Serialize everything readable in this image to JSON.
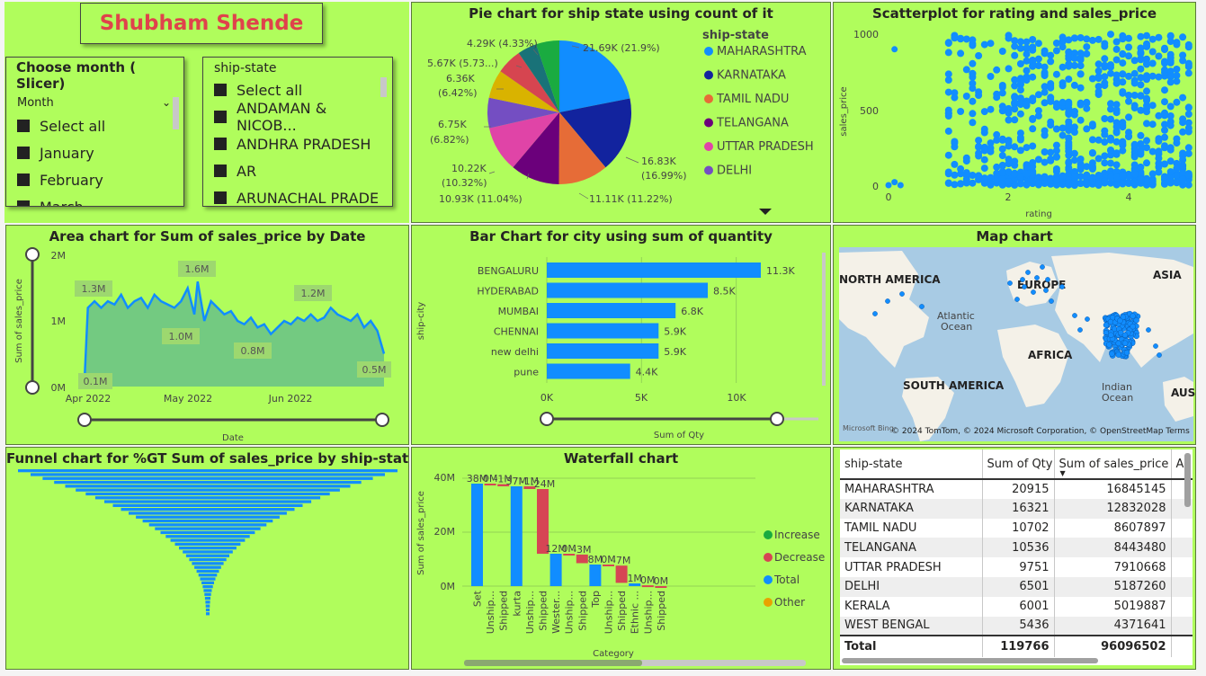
{
  "title": "Shubham Shende",
  "month_slicer": {
    "title": "Choose month ( Slicer)",
    "field": "Month",
    "items": [
      "Select all",
      "January",
      "February",
      "March"
    ]
  },
  "state_slicer": {
    "title": "ship-state",
    "items": [
      "Select all",
      "ANDAMAN & NICOB...",
      "ANDHRA PRADESH",
      "AR",
      "ARUNACHAL PRADE"
    ]
  },
  "pie": {
    "title": "Pie chart for ship state using count of it",
    "legend_title": "ship-state",
    "legend": [
      {
        "name": "MAHARASHTRA",
        "color": "#118dff"
      },
      {
        "name": "KARNATAKA",
        "color": "#12239e"
      },
      {
        "name": "TAMIL NADU",
        "color": "#e66c37"
      },
      {
        "name": "TELANGANA",
        "color": "#6b007b"
      },
      {
        "name": "UTTAR PRADESH",
        "color": "#e044a7"
      },
      {
        "name": "DELHI",
        "color": "#744ec2"
      }
    ],
    "labels": [
      "21.69K (21.9%)",
      "16.83K",
      "(16.99%)",
      "11.11K (11.22%)",
      "10.93K (11.04%)",
      "10.22K",
      "(10.32%)",
      "6.75K",
      "(6.82%)",
      "6.36K",
      "(6.42%)",
      "5.67K (5.73...)",
      "4.29K (4.33%)"
    ]
  },
  "scatter": {
    "title": "Scatterplot for rating and sales_price",
    "xlabel": "rating",
    "ylabel": "sales_price",
    "xticks": [
      "0",
      "2",
      "4"
    ],
    "yticks": [
      "1000",
      "500",
      "0"
    ]
  },
  "area": {
    "title": "Area chart for Sum of sales_price by Date",
    "xlabel": "Date",
    "ylabel": "Sum of sales_price",
    "xticks": [
      "Apr 2022",
      "May 2022",
      "Jun 2022"
    ],
    "yticks": [
      "2M",
      "1M",
      "0M"
    ],
    "labels": [
      "1.3M",
      "1.6M",
      "1.2M",
      "1.0M",
      "0.8M",
      "0.1M",
      "0.5M"
    ]
  },
  "bar": {
    "title": "Bar Chart for city using sum of quantity",
    "xlabel": "Sum of Qty",
    "ylabel": "ship-city",
    "xticks": [
      "0K",
      "5K",
      "10K"
    ]
  },
  "map": {
    "title": "Map chart",
    "labels": [
      "NORTH AMERICA",
      "EUROPE",
      "ASIA",
      "Atlantic",
      "Ocean",
      "AFRICA",
      "SOUTH AMERICA",
      "Indian",
      "Ocean",
      "AUS"
    ],
    "attribution": "© 2024 TomTom, © 2024 Microsoft Corporation, © OpenStreetMap Terms",
    "brand": "Microsoft Bing"
  },
  "funnel": {
    "title": "Funnel chart for %GT Sum of sales_price by ship-state"
  },
  "waterfall": {
    "title": "Waterfall chart",
    "xlabel": "Category",
    "ylabel": "Sum of sales_price",
    "yticks": [
      "40M",
      "20M",
      "0M"
    ],
    "legend": [
      {
        "name": "Increase",
        "color": "#1aab40"
      },
      {
        "name": "Decrease",
        "color": "#d64554"
      },
      {
        "name": "Total",
        "color": "#118dff"
      },
      {
        "name": "Other",
        "color": "#e8a200"
      }
    ]
  },
  "table": {
    "columns": [
      "ship-state",
      "Sum of Qty",
      "Sum of sales_price",
      "A"
    ],
    "rows": [
      [
        "MAHARASHTRA",
        "20915",
        "16845145"
      ],
      [
        "KARNATAKA",
        "16321",
        "12832028"
      ],
      [
        "TAMIL NADU",
        "10702",
        "8607897"
      ],
      [
        "TELANGANA",
        "10536",
        "8443480"
      ],
      [
        "UTTAR PRADESH",
        "9751",
        "7910668"
      ],
      [
        "DELHI",
        "6501",
        "5187260"
      ],
      [
        "KERALA",
        "6001",
        "5019887"
      ],
      [
        "WEST BENGAL",
        "5436",
        "4371641"
      ]
    ],
    "total": [
      "Total",
      "119766",
      "96096502"
    ]
  },
  "chart_data": [
    {
      "type": "pie",
      "title": "Pie chart for ship state using count of it",
      "categories": [
        "MAHARASHTRA",
        "KARNATAKA",
        "TAMIL NADU",
        "TELANGANA",
        "UTTAR PRADESH",
        "DELHI",
        "",
        "",
        "",
        ""
      ],
      "values": [
        21.9,
        16.99,
        11.22,
        11.04,
        10.32,
        6.82,
        6.42,
        5.73,
        4.33,
        5.24
      ],
      "colors": [
        "#118dff",
        "#12239e",
        "#e66c37",
        "#6b007b",
        "#e044a7",
        "#744ec2",
        "#d9b300",
        "#d64550",
        "#197278",
        "#1aab40"
      ],
      "legend": "right"
    },
    {
      "type": "bar",
      "title": "Bar Chart for city using sum of quantity",
      "categories": [
        "BENGALURU",
        "HYDERABAD",
        "MUMBAI",
        "CHENNAI",
        "new delhi",
        "pune"
      ],
      "values": [
        11.3,
        8.5,
        6.8,
        5.9,
        5.9,
        4.4
      ],
      "value_labels": [
        "11.3K",
        "8.5K",
        "6.8K",
        "5.9K",
        "5.9K",
        "4.4K"
      ],
      "xlim": [
        0,
        11.3
      ],
      "xlabel": "Sum of Qty",
      "ylabel": "ship-city"
    },
    {
      "type": "area",
      "title": "Area chart for Sum of sales_price by Date",
      "x": [
        "2022-03-31",
        "2022-04-01",
        "2022-04-03",
        "2022-04-05",
        "2022-04-07",
        "2022-04-09",
        "2022-04-11",
        "2022-04-13",
        "2022-04-15",
        "2022-04-17",
        "2022-04-19",
        "2022-04-21",
        "2022-04-23",
        "2022-04-25",
        "2022-04-27",
        "2022-04-29",
        "2022-05-01",
        "2022-05-03",
        "2022-05-04",
        "2022-05-06",
        "2022-05-08",
        "2022-05-10",
        "2022-05-12",
        "2022-05-14",
        "2022-05-16",
        "2022-05-18",
        "2022-05-20",
        "2022-05-22",
        "2022-05-24",
        "2022-05-26",
        "2022-05-28",
        "2022-05-30",
        "2022-06-01",
        "2022-06-03",
        "2022-06-05",
        "2022-06-07",
        "2022-06-09",
        "2022-06-11",
        "2022-06-13",
        "2022-06-15",
        "2022-06-17",
        "2022-06-19",
        "2022-06-21",
        "2022-06-23",
        "2022-06-25",
        "2022-06-27",
        "2022-06-29"
      ],
      "y": [
        0.1,
        1.2,
        1.3,
        1.2,
        1.3,
        1.25,
        1.4,
        1.2,
        1.3,
        1.35,
        1.2,
        1.4,
        1.3,
        1.25,
        1.2,
        1.3,
        1.5,
        1.1,
        1.6,
        1.0,
        1.3,
        1.2,
        1.1,
        1.15,
        1.0,
        0.95,
        1.05,
        0.9,
        0.95,
        0.8,
        0.9,
        1.0,
        0.95,
        1.05,
        1.0,
        1.1,
        1.0,
        1.05,
        1.2,
        1.1,
        1.05,
        1.0,
        1.1,
        0.9,
        1.0,
        0.85,
        0.5
      ],
      "ylim": [
        0,
        2
      ],
      "xlabel": "Date",
      "ylabel": "Sum of sales_price"
    },
    {
      "type": "scatter",
      "title": "Scatterplot for rating and sales_price",
      "xlabel": "rating",
      "ylabel": "sales_price",
      "xlim": [
        0,
        5
      ],
      "ylim": [
        0,
        1000
      ]
    },
    {
      "type": "bar",
      "title": "Waterfall chart",
      "categories": [
        "Set",
        "Unship...",
        "Shipped",
        "kurta",
        "Unship...",
        "Shipped",
        "Wester...",
        "Unship...",
        "Shipped",
        "Top",
        "Unship...",
        "Shipped",
        "Ethnic ...",
        "Unship...",
        "Shipped"
      ],
      "value_labels": [
        "38M",
        "0M",
        "-1M",
        "37M",
        "-1M",
        "-24M",
        "12M",
        "0M",
        "-3M",
        "8M",
        "0M",
        "-7M",
        "1M",
        "0M",
        "0M"
      ],
      "ylim": [
        0,
        40
      ],
      "xlabel": "Category",
      "ylabel": "Sum of sales_price"
    }
  ]
}
